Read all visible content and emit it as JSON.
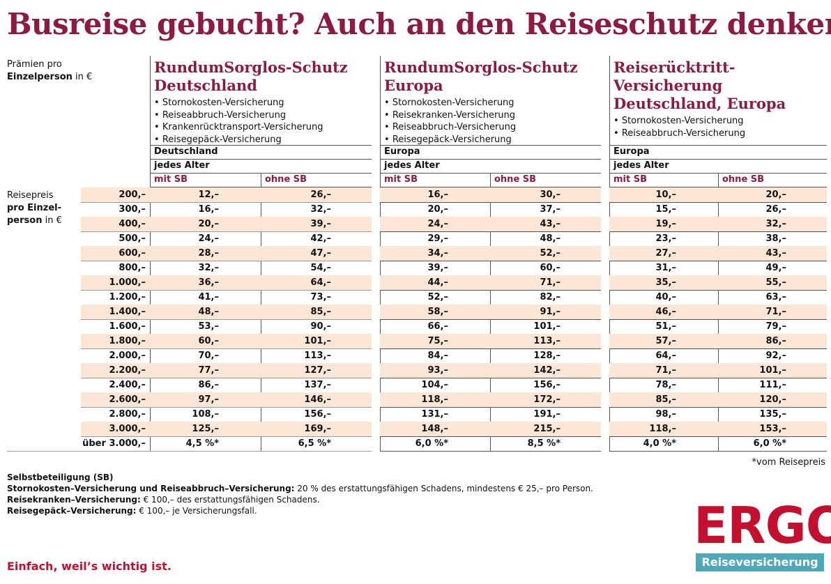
{
  "title": "Busreise gebucht? Auch an den Reiseschutz denken!",
  "praemien_label": {
    "line1": "Prämien pro",
    "line2_bold": "Einzelperson",
    "line2_rest": " in €"
  },
  "reisepreis_label": {
    "line1": "Reisepreis",
    "line2": "pro Einzel-",
    "line3_bold": "person",
    "line3_rest": " in €"
  },
  "products": [
    {
      "name_line1": "RundumSorglos-Schutz",
      "name_line2": "Deutschland",
      "name_line3": "",
      "items": [
        "Stornokosten-Versicherung",
        "Reiseabbruch-Versicherung",
        "Krankenrücktransport-Versicherung",
        "Reisegepäck-Versicherung"
      ],
      "region": "Deutschland",
      "age": "jedes Alter",
      "col_mit": "mit SB",
      "col_ohne": "ohne SB"
    },
    {
      "name_line1": "RundumSorglos-Schutz",
      "name_line2": "Europa",
      "name_line3": "",
      "items": [
        "Stornokosten-Versicherung",
        "Reisekranken-Versicherung",
        "Reiseabbruch-Versicherung",
        "Reisegepäck-Versicherung"
      ],
      "region": "Europa",
      "age": "jedes Alter",
      "col_mit": "mit SB",
      "col_ohne": "ohne SB"
    },
    {
      "name_line1": "Reiserücktritt-",
      "name_line2": "Versicherung",
      "name_line3": "Deutschland, Europa",
      "items": [
        "Stornokosten-Versicherung",
        "Reiseabbruch-Versicherung"
      ],
      "region": "Europa",
      "age": "jedes Alter",
      "col_mit": "mit SB",
      "col_ohne": "ohne SB"
    }
  ],
  "rows": [
    {
      "price": "200,–",
      "values": [
        "12,–",
        "26,–",
        "16,–",
        "30,–",
        "10,–",
        "20,–"
      ]
    },
    {
      "price": "300,–",
      "values": [
        "16,–",
        "32,–",
        "20,–",
        "37,–",
        "15,–",
        "26,–"
      ]
    },
    {
      "price": "400,–",
      "values": [
        "20,–",
        "39,–",
        "24,–",
        "43,–",
        "19,–",
        "32,–"
      ]
    },
    {
      "price": "500,–",
      "values": [
        "24,–",
        "42,–",
        "29,–",
        "48,–",
        "23,–",
        "38,–"
      ]
    },
    {
      "price": "600,–",
      "values": [
        "28,–",
        "47,–",
        "34,–",
        "52,–",
        "27,–",
        "43,–"
      ]
    },
    {
      "price": "800,–",
      "values": [
        "32,–",
        "54,–",
        "39,–",
        "60,–",
        "31,–",
        "49,–"
      ]
    },
    {
      "price": "1.000,–",
      "values": [
        "36,–",
        "64,–",
        "44,–",
        "71,–",
        "35,–",
        "55,–"
      ]
    },
    {
      "price": "1.200,–",
      "values": [
        "41,–",
        "73,–",
        "52,–",
        "82,–",
        "40,–",
        "63,–"
      ]
    },
    {
      "price": "1.400,–",
      "values": [
        "48,–",
        "85,–",
        "58,–",
        "91,–",
        "46,–",
        "71,–"
      ]
    },
    {
      "price": "1.600,–",
      "values": [
        "53,–",
        "90,–",
        "66,–",
        "101,–",
        "51,–",
        "79,–"
      ]
    },
    {
      "price": "1.800,–",
      "values": [
        "60,–",
        "101,–",
        "75,–",
        "113,–",
        "57,–",
        "86,–"
      ]
    },
    {
      "price": "2.000,–",
      "values": [
        "70,–",
        "113,–",
        "84,–",
        "128,–",
        "64,–",
        "92,–"
      ]
    },
    {
      "price": "2.200,–",
      "values": [
        "77,–",
        "127,–",
        "93,–",
        "142,–",
        "71,–",
        "101,–"
      ]
    },
    {
      "price": "2.400,–",
      "values": [
        "86,–",
        "137,–",
        "104,–",
        "156,–",
        "78,–",
        "111,–"
      ]
    },
    {
      "price": "2.600,–",
      "values": [
        "97,–",
        "146,–",
        "118,–",
        "172,–",
        "85,–",
        "120,–"
      ]
    },
    {
      "price": "2.800,–",
      "values": [
        "108,–",
        "156,–",
        "131,–",
        "191,–",
        "98,–",
        "135,–"
      ]
    },
    {
      "price": "3.000,–",
      "values": [
        "125,–",
        "169,–",
        "148,–",
        "215,–",
        "118,–",
        "153,–"
      ]
    },
    {
      "price": "über 3.000,–",
      "values": [
        "4,5 %*",
        "6,5 %*",
        "6,0 %*",
        "8,5 %*",
        "4,0 %*",
        "6,0 %*"
      ]
    }
  ],
  "footnote": "*vom Reisepreis",
  "legend": {
    "heading": "Selbstbeteiligung (SB)",
    "lines": [
      {
        "bold": "Stornokosten–Versicherung und Reiseabbruch–Versicherung:",
        "text": " 20 % des erstattungsfähigen Schadens, mindestens € 25,– pro Person."
      },
      {
        "bold": "Reisekranken–Versicherung:",
        "text": " € 100,– des erstattungsfähigen Schadens."
      },
      {
        "bold": "Reisegepäck–Versicherung:",
        "text": " € 100,– je Versicherungsfall."
      }
    ]
  },
  "slogan": "Einfach, weil’s wichtig ist.",
  "logo": "ERGO",
  "badge": "Reiseversicherung",
  "colors": {
    "brand_red": "#c40f2e",
    "title_wine": "#8e1b3f",
    "row_tint": "#fce6d6",
    "badge_teal": "#4fa8b8"
  }
}
